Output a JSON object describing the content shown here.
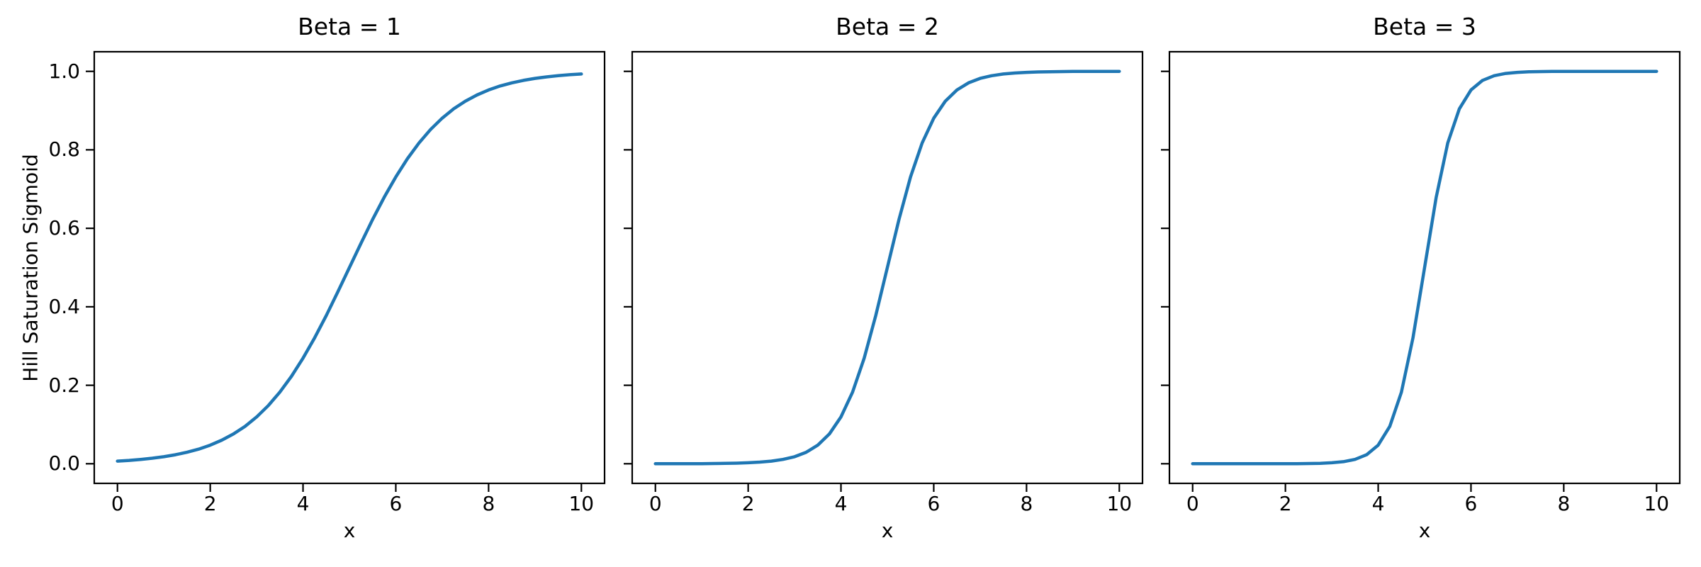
{
  "figure": {
    "background": "#ffffff"
  },
  "chart_data": {
    "type": "line",
    "ylabel": "Hill Saturation Sigmoid",
    "line_color": "#1f77b4",
    "axis_color": "#000000",
    "xlim": [
      -0.5,
      10.5
    ],
    "ylim": [
      -0.05,
      1.05
    ],
    "xticks": [
      0,
      2,
      4,
      6,
      8,
      10
    ],
    "xticklabels": [
      "0",
      "2",
      "4",
      "6",
      "8",
      "10"
    ],
    "yticks": [
      0.0,
      0.2,
      0.4,
      0.6,
      0.8,
      1.0
    ],
    "yticklabels": [
      "0.0",
      "0.2",
      "0.4",
      "0.6",
      "0.8",
      "1.0"
    ],
    "grid": false,
    "legend": false,
    "x": [
      0,
      0.25,
      0.5,
      0.75,
      1,
      1.25,
      1.5,
      1.75,
      2,
      2.25,
      2.5,
      2.75,
      3,
      3.25,
      3.5,
      3.75,
      4,
      4.25,
      4.5,
      4.75,
      5,
      5.25,
      5.5,
      5.75,
      6,
      6.25,
      6.5,
      6.75,
      7,
      7.25,
      7.5,
      7.75,
      8,
      8.25,
      8.5,
      8.75,
      9,
      9.25,
      9.5,
      9.75,
      10
    ],
    "panels": [
      {
        "title": "Beta = 1",
        "xlabel": "x",
        "beta": 1,
        "show_ytick_labels": true,
        "values": [
          0.0067,
          0.0086,
          0.011,
          0.0141,
          0.018,
          0.023,
          0.0293,
          0.0373,
          0.0474,
          0.0601,
          0.0759,
          0.0953,
          0.1192,
          0.1481,
          0.1824,
          0.2227,
          0.2689,
          0.3208,
          0.3775,
          0.4378,
          0.5,
          0.5622,
          0.6225,
          0.6792,
          0.7311,
          0.7773,
          0.8176,
          0.8519,
          0.8808,
          0.9047,
          0.9241,
          0.9399,
          0.9526,
          0.9627,
          0.9707,
          0.977,
          0.982,
          0.9859,
          0.989,
          0.9914,
          0.9933
        ]
      },
      {
        "title": "Beta = 2",
        "xlabel": "x",
        "beta": 2,
        "show_ytick_labels": false,
        "values": [
          0.0,
          0.0001,
          0.0001,
          0.0002,
          0.0003,
          0.0006,
          0.0009,
          0.0015,
          0.0025,
          0.0041,
          0.0067,
          0.011,
          0.018,
          0.0293,
          0.0474,
          0.0759,
          0.1192,
          0.1824,
          0.2689,
          0.3775,
          0.5,
          0.6225,
          0.7311,
          0.8176,
          0.8808,
          0.9241,
          0.9526,
          0.9707,
          0.982,
          0.989,
          0.9933,
          0.9959,
          0.9975,
          0.9985,
          0.9991,
          0.9994,
          0.9997,
          0.9998,
          0.9999,
          0.9999,
          1.0
        ]
      },
      {
        "title": "Beta = 3",
        "xlabel": "x",
        "beta": 3,
        "show_ytick_labels": false,
        "values": [
          0.0,
          0.0,
          0.0,
          0.0,
          0.0,
          0.0,
          0.0,
          0.0001,
          0.0001,
          0.0003,
          0.0006,
          0.0012,
          0.0025,
          0.0052,
          0.011,
          0.023,
          0.0474,
          0.0953,
          0.1824,
          0.3208,
          0.5,
          0.6792,
          0.8176,
          0.9047,
          0.9526,
          0.977,
          0.989,
          0.9948,
          0.9975,
          0.9988,
          0.9994,
          0.9997,
          0.9999,
          0.9999,
          1.0,
          1.0,
          1.0,
          1.0,
          1.0,
          1.0,
          1.0
        ]
      }
    ]
  }
}
